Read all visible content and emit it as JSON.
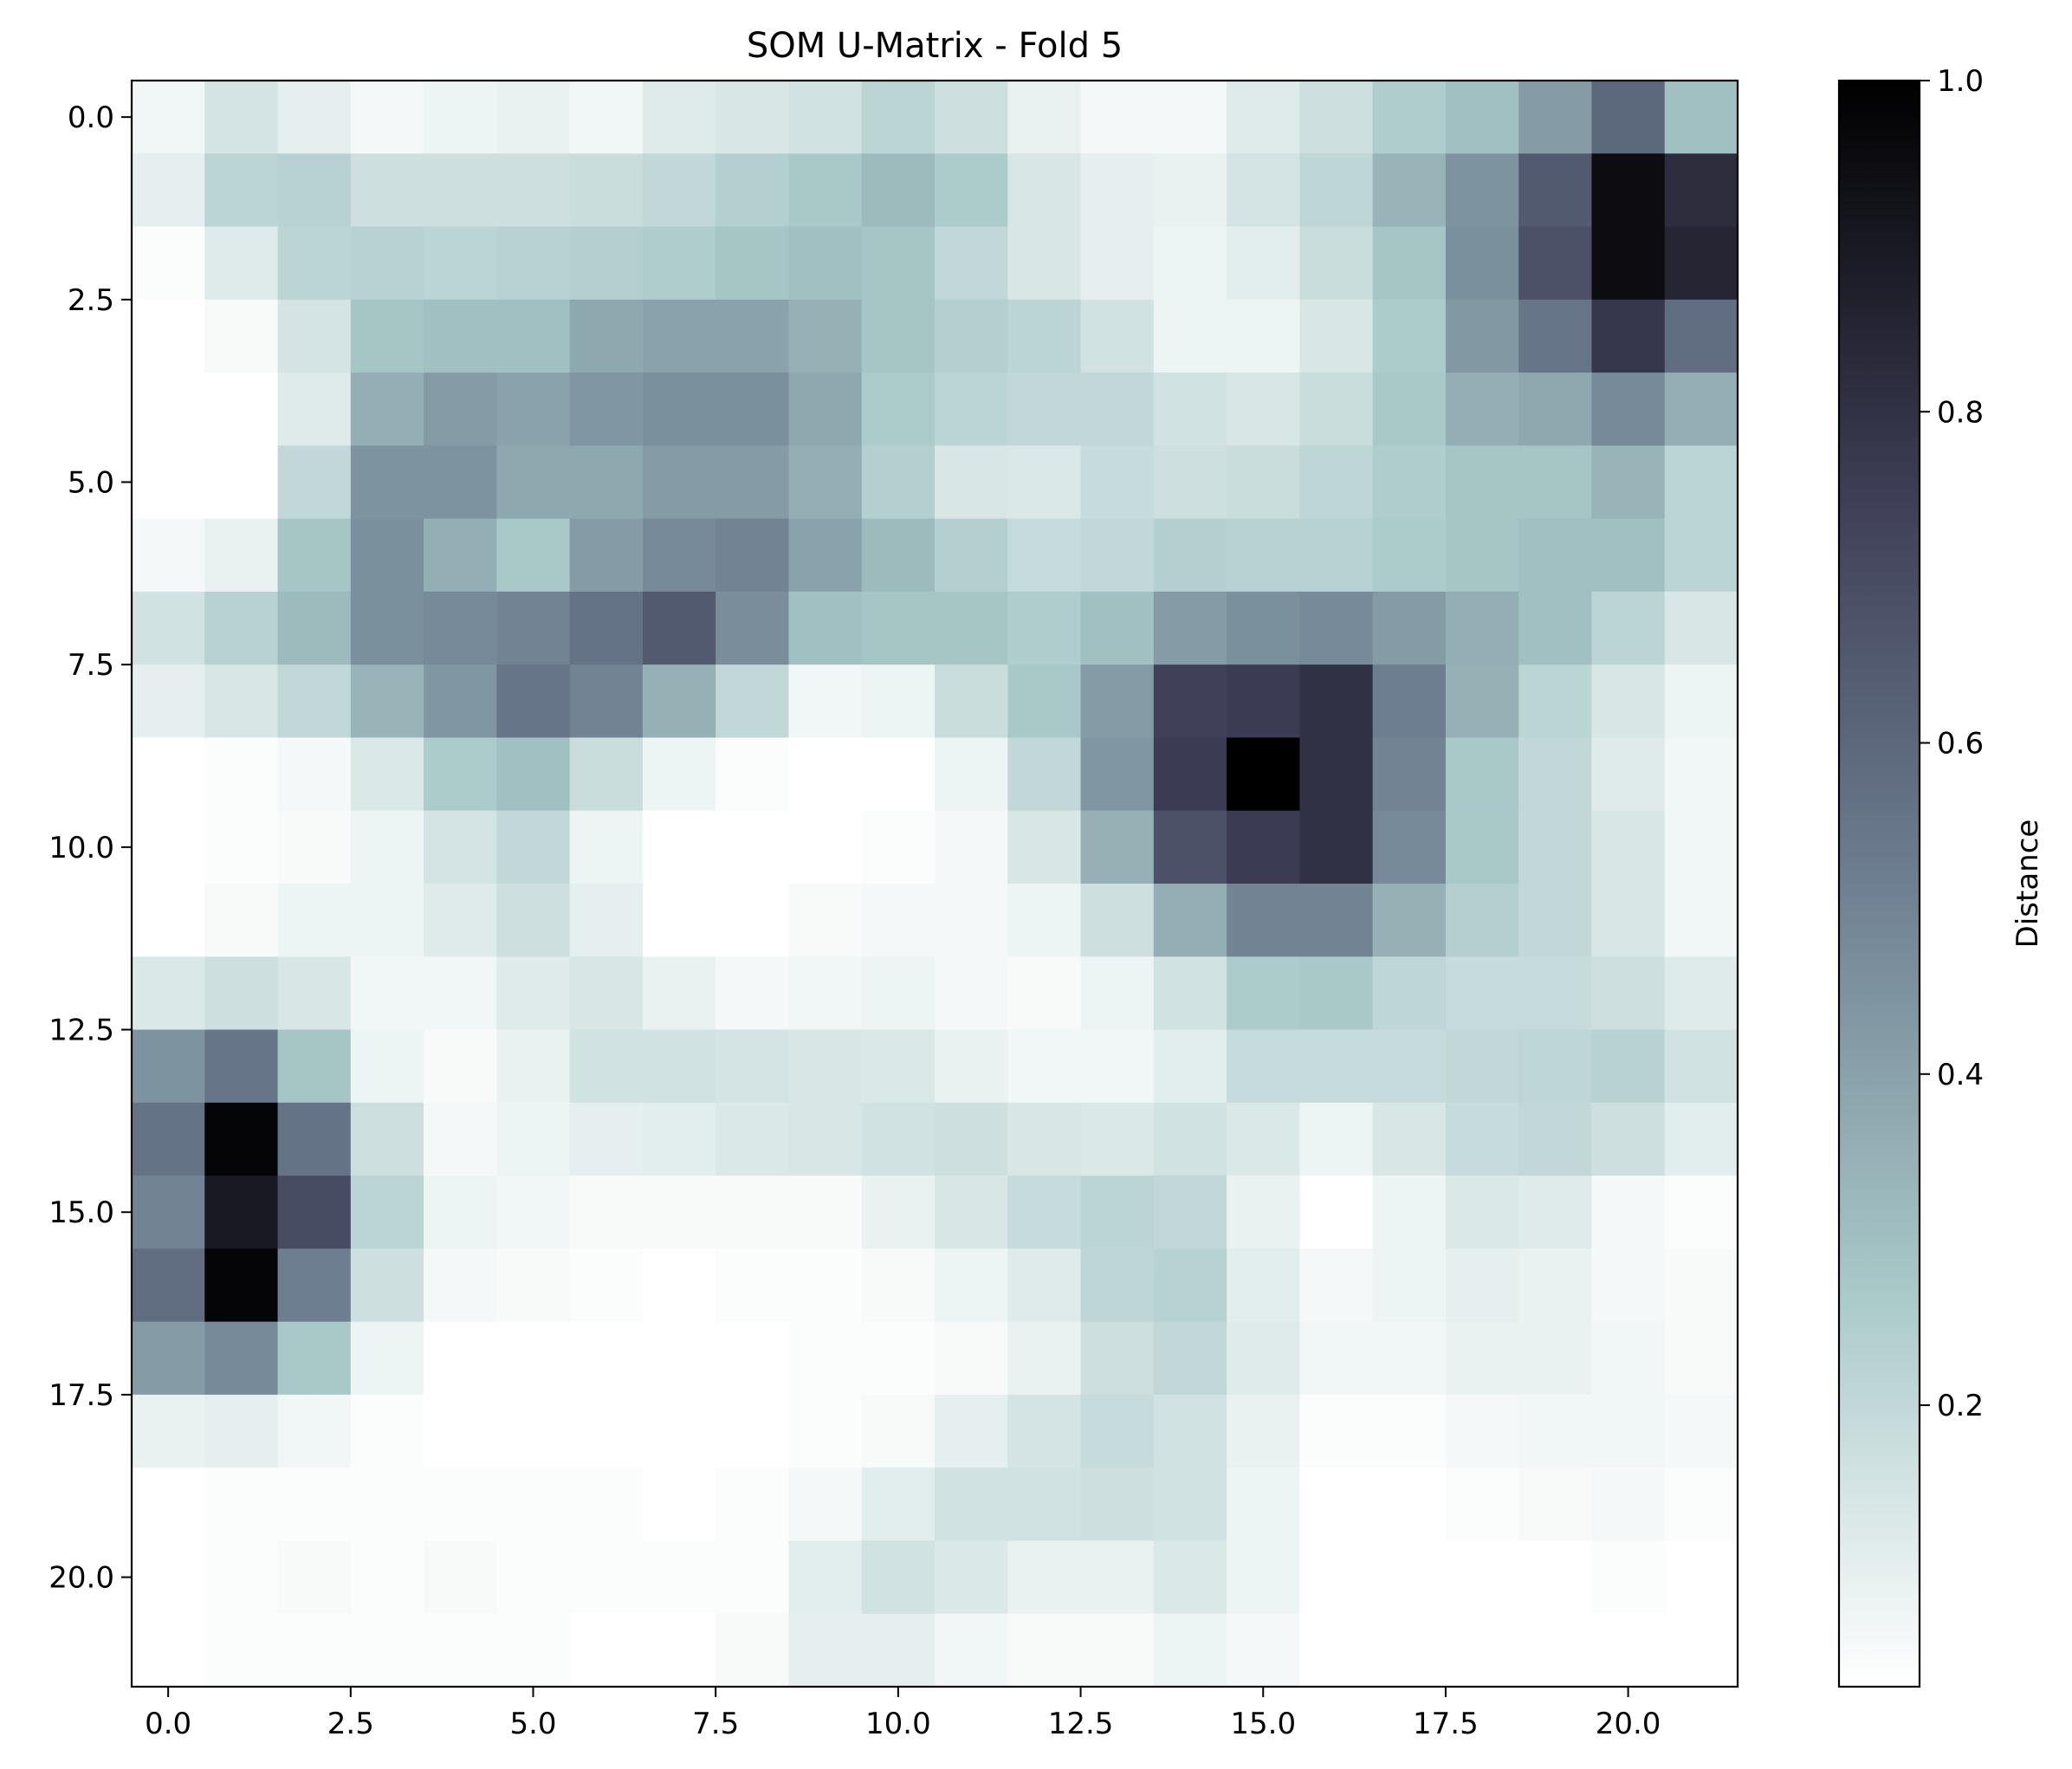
{
  "chart_data": {
    "type": "heatmap",
    "title": "SOM U-Matrix - Fold 5",
    "colorbar": {
      "label": "Distance",
      "range": [
        0.03,
        1.0
      ],
      "ticks": [
        0.2,
        0.4,
        0.6,
        0.8,
        1.0
      ],
      "tick_labels": [
        "0.2",
        "0.4",
        "0.6",
        "0.8",
        "1.0"
      ],
      "colormap": "bone_r",
      "colormap_stops": [
        "#ffffff",
        "#a8c8c8",
        "#6e7f91",
        "#3c3c54",
        "#000000"
      ]
    },
    "x_axis": {
      "range": [
        -0.5,
        21.5
      ],
      "ticks": [
        0,
        2.5,
        5,
        7.5,
        10,
        12.5,
        15,
        17.5,
        20
      ],
      "tick_labels": [
        "0.0",
        "2.5",
        "5.0",
        "7.5",
        "10.0",
        "12.5",
        "15.0",
        "17.5",
        "20.0"
      ]
    },
    "y_axis": {
      "range": [
        -0.5,
        21.5
      ],
      "inverted": true,
      "ticks": [
        0,
        2.5,
        5,
        7.5,
        10,
        12.5,
        15,
        17.5,
        20
      ],
      "tick_labels": [
        "0.0",
        "2.5",
        "5.0",
        "7.5",
        "10.0",
        "12.5",
        "15.0",
        "17.5",
        "20.0"
      ]
    },
    "matrix": [
      [
        0.07,
        0.15,
        0.1,
        0.06,
        0.08,
        0.09,
        0.07,
        0.12,
        0.14,
        0.16,
        0.22,
        0.17,
        0.09,
        0.06,
        0.06,
        0.12,
        0.17,
        0.25,
        0.3,
        0.42,
        0.6,
        0.3
      ],
      [
        0.1,
        0.22,
        0.23,
        0.17,
        0.17,
        0.17,
        0.18,
        0.2,
        0.24,
        0.27,
        0.32,
        0.26,
        0.14,
        0.1,
        0.09,
        0.15,
        0.21,
        0.34,
        0.45,
        0.65,
        0.95,
        0.82
      ],
      [
        0.04,
        0.12,
        0.22,
        0.23,
        0.22,
        0.23,
        0.24,
        0.25,
        0.28,
        0.3,
        0.28,
        0.2,
        0.14,
        0.1,
        0.08,
        0.11,
        0.18,
        0.28,
        0.46,
        0.68,
        0.95,
        0.85
      ],
      [
        0.03,
        0.05,
        0.15,
        0.28,
        0.3,
        0.3,
        0.38,
        0.4,
        0.4,
        0.35,
        0.28,
        0.24,
        0.22,
        0.16,
        0.08,
        0.08,
        0.14,
        0.26,
        0.43,
        0.55,
        0.78,
        0.58
      ],
      [
        0.02,
        0.02,
        0.12,
        0.36,
        0.42,
        0.4,
        0.44,
        0.46,
        0.46,
        0.38,
        0.26,
        0.22,
        0.2,
        0.2,
        0.16,
        0.14,
        0.18,
        0.27,
        0.36,
        0.38,
        0.48,
        0.36
      ],
      [
        0.02,
        0.02,
        0.2,
        0.45,
        0.45,
        0.38,
        0.38,
        0.42,
        0.42,
        0.36,
        0.24,
        0.14,
        0.13,
        0.19,
        0.17,
        0.18,
        0.21,
        0.25,
        0.28,
        0.28,
        0.34,
        0.22
      ],
      [
        0.06,
        0.09,
        0.28,
        0.46,
        0.36,
        0.27,
        0.42,
        0.48,
        0.5,
        0.4,
        0.32,
        0.24,
        0.19,
        0.2,
        0.24,
        0.23,
        0.23,
        0.26,
        0.28,
        0.3,
        0.3,
        0.22
      ],
      [
        0.16,
        0.23,
        0.32,
        0.46,
        0.48,
        0.5,
        0.56,
        0.65,
        0.47,
        0.3,
        0.28,
        0.28,
        0.25,
        0.3,
        0.42,
        0.46,
        0.48,
        0.42,
        0.36,
        0.3,
        0.22,
        0.14
      ],
      [
        0.1,
        0.14,
        0.2,
        0.34,
        0.44,
        0.55,
        0.5,
        0.35,
        0.2,
        0.07,
        0.08,
        0.18,
        0.27,
        0.42,
        0.74,
        0.76,
        0.8,
        0.52,
        0.35,
        0.22,
        0.14,
        0.08
      ],
      [
        0.03,
        0.04,
        0.06,
        0.13,
        0.26,
        0.3,
        0.18,
        0.08,
        0.04,
        0.02,
        0.03,
        0.08,
        0.2,
        0.44,
        0.76,
        1.0,
        0.8,
        0.5,
        0.27,
        0.2,
        0.12,
        0.07
      ],
      [
        0.03,
        0.04,
        0.05,
        0.08,
        0.15,
        0.2,
        0.08,
        0.02,
        0.02,
        0.03,
        0.04,
        0.06,
        0.14,
        0.35,
        0.68,
        0.76,
        0.8,
        0.48,
        0.27,
        0.2,
        0.14,
        0.07
      ],
      [
        0.03,
        0.05,
        0.08,
        0.08,
        0.12,
        0.17,
        0.1,
        0.03,
        0.03,
        0.05,
        0.06,
        0.06,
        0.08,
        0.17,
        0.36,
        0.5,
        0.5,
        0.35,
        0.24,
        0.2,
        0.14,
        0.07
      ],
      [
        0.13,
        0.17,
        0.14,
        0.07,
        0.07,
        0.12,
        0.14,
        0.09,
        0.06,
        0.07,
        0.08,
        0.06,
        0.05,
        0.08,
        0.16,
        0.26,
        0.27,
        0.21,
        0.19,
        0.19,
        0.17,
        0.12
      ],
      [
        0.45,
        0.55,
        0.28,
        0.08,
        0.05,
        0.09,
        0.16,
        0.16,
        0.15,
        0.14,
        0.13,
        0.09,
        0.07,
        0.07,
        0.11,
        0.19,
        0.19,
        0.19,
        0.2,
        0.21,
        0.23,
        0.16
      ],
      [
        0.56,
        0.98,
        0.56,
        0.17,
        0.06,
        0.08,
        0.1,
        0.11,
        0.13,
        0.14,
        0.16,
        0.17,
        0.14,
        0.13,
        0.16,
        0.13,
        0.08,
        0.14,
        0.19,
        0.2,
        0.17,
        0.11
      ],
      [
        0.5,
        0.9,
        0.7,
        0.22,
        0.08,
        0.07,
        0.05,
        0.05,
        0.05,
        0.05,
        0.09,
        0.14,
        0.19,
        0.22,
        0.2,
        0.09,
        0.03,
        0.08,
        0.13,
        0.12,
        0.06,
        0.04
      ],
      [
        0.58,
        0.98,
        0.52,
        0.17,
        0.06,
        0.05,
        0.04,
        0.03,
        0.04,
        0.04,
        0.05,
        0.08,
        0.12,
        0.21,
        0.23,
        0.11,
        0.06,
        0.08,
        0.1,
        0.09,
        0.06,
        0.05
      ],
      [
        0.42,
        0.48,
        0.27,
        0.08,
        0.03,
        0.03,
        0.03,
        0.03,
        0.03,
        0.04,
        0.04,
        0.05,
        0.09,
        0.17,
        0.2,
        0.12,
        0.07,
        0.07,
        0.09,
        0.09,
        0.07,
        0.05
      ],
      [
        0.09,
        0.1,
        0.07,
        0.04,
        0.03,
        0.03,
        0.03,
        0.03,
        0.03,
        0.04,
        0.05,
        0.1,
        0.15,
        0.19,
        0.16,
        0.09,
        0.04,
        0.04,
        0.06,
        0.07,
        0.07,
        0.06
      ],
      [
        0.03,
        0.04,
        0.04,
        0.04,
        0.04,
        0.04,
        0.04,
        0.03,
        0.04,
        0.06,
        0.11,
        0.16,
        0.16,
        0.17,
        0.16,
        0.08,
        0.03,
        0.03,
        0.04,
        0.05,
        0.06,
        0.04
      ],
      [
        0.03,
        0.04,
        0.05,
        0.04,
        0.05,
        0.04,
        0.04,
        0.04,
        0.04,
        0.11,
        0.16,
        0.13,
        0.09,
        0.09,
        0.13,
        0.08,
        0.03,
        0.03,
        0.03,
        0.03,
        0.04,
        0.03
      ],
      [
        0.03,
        0.04,
        0.04,
        0.04,
        0.04,
        0.04,
        0.03,
        0.03,
        0.05,
        0.1,
        0.1,
        0.07,
        0.05,
        0.05,
        0.08,
        0.06,
        0.03,
        0.03,
        0.03,
        0.03,
        0.03,
        0.03
      ]
    ]
  }
}
